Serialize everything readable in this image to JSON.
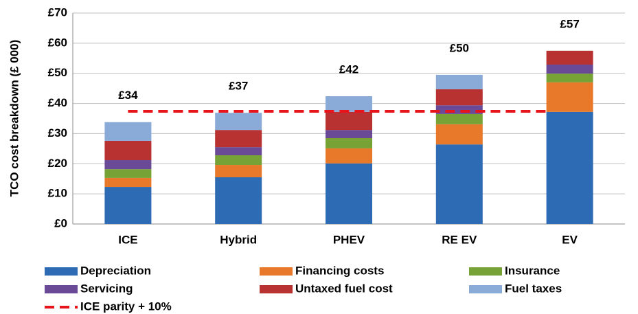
{
  "chart_data": {
    "type": "stacked_bar",
    "y_label": "TCO cost breakdown (£ 000)",
    "categories": [
      "ICE",
      "Hybrid",
      "PHEV",
      "RE EV",
      "EV"
    ],
    "series": [
      {
        "name": "Depreciation",
        "color": "#2e6bb5",
        "values": [
          12.3,
          15.5,
          20.1,
          26.4,
          37.2
        ]
      },
      {
        "name": "Financing costs",
        "color": "#e8792a",
        "values": [
          3.0,
          4.1,
          5.0,
          6.7,
          9.8
        ]
      },
      {
        "name": "Insurance",
        "color": "#77a336",
        "values": [
          2.9,
          3.2,
          3.4,
          3.4,
          2.9
        ]
      },
      {
        "name": "Servicing",
        "color": "#6a4a96",
        "values": [
          3.0,
          2.7,
          2.7,
          2.9,
          3.0
        ]
      },
      {
        "name": "Untaxed fuel cost",
        "color": "#b83232",
        "values": [
          6.4,
          5.7,
          6.0,
          5.3,
          4.6
        ]
      },
      {
        "name": "Fuel taxes",
        "color": "#8aaad8",
        "values": [
          6.2,
          5.7,
          5.2,
          4.8,
          0
        ]
      }
    ],
    "total_labels": [
      "£34",
      "£37",
      "£42",
      "£50",
      "£57"
    ],
    "reference_line": {
      "name": "ICE parity + 10%",
      "value": 37.4,
      "color": "#e8141b"
    },
    "ylim": [
      0,
      70
    ],
    "yticks": [
      {
        "value": 0,
        "label": "£0"
      },
      {
        "value": 10,
        "label": "£10"
      },
      {
        "value": 20,
        "label": "£20"
      },
      {
        "value": 30,
        "label": "£30"
      },
      {
        "value": 40,
        "label": "£40"
      },
      {
        "value": 50,
        "label": "£50"
      },
      {
        "value": 60,
        "label": "£60"
      },
      {
        "value": 70,
        "label": "£70"
      }
    ],
    "grid": true
  }
}
